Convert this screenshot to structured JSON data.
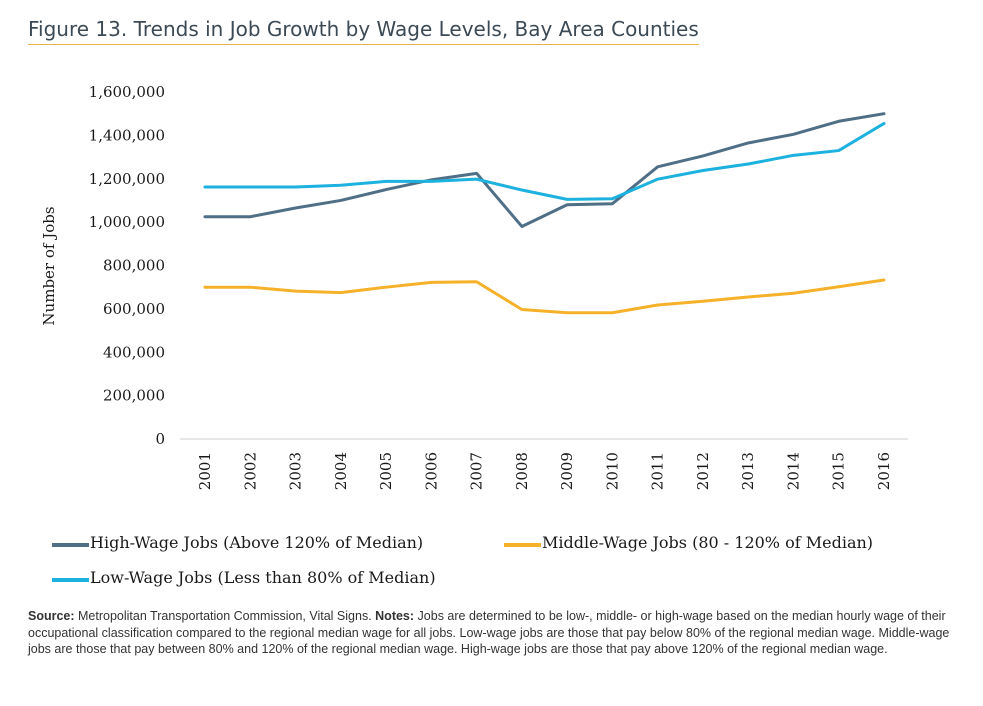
{
  "figure": {
    "title": "Figure 13. Trends in Job Growth by Wage Levels, Bay Area Counties"
  },
  "chart_data": {
    "type": "line",
    "title": "Figure 13. Trends in Job Growth by Wage Levels, Bay Area Counties",
    "xlabel": "",
    "ylabel": "Number of Jobs",
    "ylim": [
      0,
      1600000
    ],
    "yticks": [
      0,
      200000,
      400000,
      600000,
      800000,
      1000000,
      1200000,
      1400000,
      1600000
    ],
    "ytick_labels": [
      "0",
      "200,000",
      "400,000",
      "600,000",
      "800,000",
      "1,000,000",
      "1,200,000",
      "1,400,000",
      "1,600,000"
    ],
    "categories": [
      "2001",
      "2002",
      "2003",
      "2004",
      "2005",
      "2006",
      "2007",
      "2008",
      "2009",
      "2010",
      "2011",
      "2012",
      "2013",
      "2014",
      "2015",
      "2016"
    ],
    "grid": false,
    "legend_position": "bottom",
    "series": [
      {
        "name": "High-Wage Jobs (Above 120% of Median)",
        "color": "#4f6f86",
        "values": [
          1025000,
          1025000,
          1065000,
          1100000,
          1150000,
          1195000,
          1225000,
          980000,
          1080000,
          1085000,
          1255000,
          1305000,
          1365000,
          1405000,
          1465000,
          1500000
        ]
      },
      {
        "name": "Middle-Wage Jobs (80 - 120% of Median)",
        "color": "#f6b12a",
        "values": [
          700000,
          700000,
          682000,
          675000,
          700000,
          722000,
          725000,
          597000,
          582000,
          582000,
          618000,
          635000,
          655000,
          672000,
          702000,
          733000
        ]
      },
      {
        "name": "Low-Wage Jobs (Less than 80% of Median)",
        "color": "#1cb1de",
        "values": [
          1162000,
          1162000,
          1162000,
          1170000,
          1188000,
          1188000,
          1198000,
          1148000,
          1105000,
          1108000,
          1198000,
          1238000,
          1268000,
          1308000,
          1330000,
          1455000
        ]
      }
    ]
  },
  "source_note": {
    "source_label": "Source:",
    "source_text": " Metropolitan Transportation Commission, Vital Signs. ",
    "notes_label": "Notes:",
    "notes_text": " Jobs are determined to be low-, middle- or high-wage based on the median hourly wage of their occupational classification compared to the regional median wage for all jobs. Low-wage jobs are those that pay below 80% of the regional median wage. Middle-wage jobs are those that pay between 80% and 120% of the regional median wage. High-wage jobs are those that pay above 120% of the regional median wage."
  }
}
